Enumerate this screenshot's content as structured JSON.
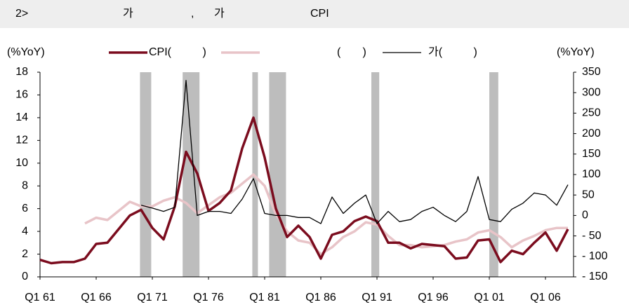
{
  "chart_data": {
    "type": "line",
    "title": [
      "2>",
      "가",
      ",",
      "가",
      "CPI"
    ],
    "y_label": "(%YoY)",
    "y2_label": "(%YoY)",
    "x": [
      1961,
      1962,
      1963,
      1964,
      1965,
      1966,
      1967,
      1968,
      1969,
      1970,
      1971,
      1972,
      1973,
      1974,
      1975,
      1976,
      1977,
      1978,
      1979,
      1980,
      1981,
      1982,
      1983,
      1984,
      1985,
      1986,
      1987,
      1988,
      1989,
      1990,
      1991,
      1992,
      1993,
      1994,
      1995,
      1996,
      1997,
      1998,
      1999,
      2000,
      2001,
      2002,
      2003,
      2004,
      2005,
      2006,
      2007,
      2008
    ],
    "xlim": [
      1961,
      2008.5
    ],
    "xticks": [
      {
        "value": 1961,
        "label": "Q1 61"
      },
      {
        "value": 1966,
        "label": "Q1 66"
      },
      {
        "value": 1971,
        "label": "Q1 71"
      },
      {
        "value": 1976,
        "label": "Q1 76"
      },
      {
        "value": 1981,
        "label": "Q1 81"
      },
      {
        "value": 1986,
        "label": "Q1 86"
      },
      {
        "value": 1991,
        "label": "Q1 91"
      },
      {
        "value": 1996,
        "label": "Q1 96"
      },
      {
        "value": 2001,
        "label": "Q1 01"
      },
      {
        "value": 2006,
        "label": "Q1 06"
      }
    ],
    "ylim": [
      0,
      18
    ],
    "yticks": [
      0,
      2,
      4,
      6,
      8,
      10,
      12,
      14,
      16,
      18
    ],
    "y2lim": [
      -150,
      350
    ],
    "y2ticks": [
      {
        "value": -150,
        "label": "- 150"
      },
      {
        "value": -100,
        "label": "- 100"
      },
      {
        "value": -50,
        "label": "- 50"
      },
      0,
      50,
      100,
      150,
      200,
      250,
      300,
      350
    ],
    "shaded_periods": [
      [
        1969.9,
        1970.9
      ],
      [
        1973.7,
        1975.2
      ],
      [
        1979.9,
        1980.4
      ],
      [
        1981.4,
        1982.9
      ],
      [
        1990.5,
        1991.2
      ],
      [
        2001.0,
        2001.8
      ]
    ],
    "shade_color": "#bdbdbd",
    "series": [
      {
        "name": "CPI(          )",
        "color": "#7b0c1e",
        "width": 3.5,
        "axis": "y",
        "values": [
          1.5,
          1.2,
          1.3,
          1.3,
          1.6,
          2.9,
          3.0,
          4.2,
          5.4,
          5.9,
          4.3,
          3.3,
          6.2,
          11.0,
          9.1,
          5.8,
          6.5,
          7.6,
          11.3,
          14.0,
          10.5,
          6.0,
          3.5,
          4.5,
          3.5,
          1.6,
          3.7,
          4.0,
          4.9,
          5.3,
          4.9,
          3.0,
          3.0,
          2.5,
          2.9,
          2.8,
          2.7,
          1.6,
          1.7,
          3.2,
          3.3,
          1.3,
          2.3,
          2.0,
          3.0,
          3.9,
          2.3,
          4.2
        ]
      },
      {
        "name": "(       )",
        "color": "#e8c4c8",
        "width": 3.5,
        "axis": "y",
        "values": [
          null,
          null,
          null,
          null,
          4.7,
          5.2,
          5.0,
          5.8,
          6.6,
          6.2,
          6.2,
          6.7,
          7.0,
          6.5,
          5.6,
          6.3,
          7.0,
          7.4,
          8.2,
          9.0,
          8.0,
          5.5,
          4.0,
          3.2,
          3.0,
          2.0,
          2.6,
          3.5,
          4.0,
          4.8,
          4.6,
          3.6,
          2.8,
          2.8,
          2.6,
          2.7,
          2.8,
          3.1,
          3.3,
          3.9,
          4.1,
          3.5,
          2.6,
          3.2,
          3.6,
          4.1,
          4.3,
          4.3
        ]
      },
      {
        "name": "가(          )",
        "color": "#000000",
        "width": 1.3,
        "axis": "y2",
        "values": [
          null,
          null,
          null,
          null,
          null,
          null,
          null,
          null,
          null,
          25,
          18,
          10,
          20,
          330,
          0,
          10,
          10,
          5,
          40,
          90,
          5,
          0,
          0,
          -5,
          -5,
          -20,
          45,
          5,
          30,
          50,
          -20,
          10,
          -15,
          -10,
          10,
          20,
          0,
          -15,
          10,
          95,
          -10,
          -15,
          15,
          30,
          55,
          50,
          25,
          75
        ]
      }
    ]
  }
}
